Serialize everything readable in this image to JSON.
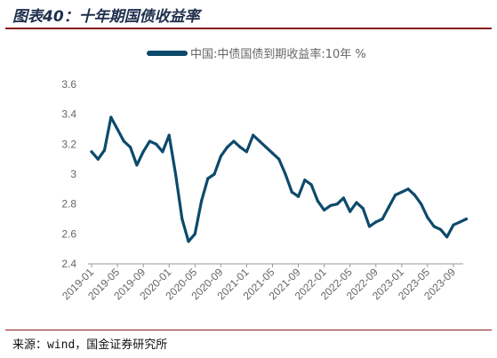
{
  "figure": {
    "title": "图表40：十年期国债收益率",
    "source": "来源：wind，国金证券研究所"
  },
  "chart_data": {
    "type": "line",
    "title": "",
    "xlabel": "",
    "ylabel": "",
    "ylim": [
      2.4,
      3.6
    ],
    "yticks": [
      "3.6",
      "3.4",
      "3.2",
      "3",
      "2.8",
      "2.6",
      "2.4"
    ],
    "xticks": [
      "2019-01",
      "2019-05",
      "2019-09",
      "2020-01",
      "2020-05",
      "2020-09",
      "2021-01",
      "2021-05",
      "2021-09",
      "2022-01",
      "2022-05",
      "2022-09",
      "2023-01",
      "2023-05",
      "2023-09"
    ],
    "grid": false,
    "legend": "top",
    "color": "#0d4a6b",
    "series": [
      {
        "name": "中国:中债国债到期收益率:10年 %",
        "x": [
          "2019-01",
          "2019-02",
          "2019-03",
          "2019-04",
          "2019-05",
          "2019-06",
          "2019-07",
          "2019-08",
          "2019-09",
          "2019-10",
          "2019-11",
          "2019-12",
          "2020-01",
          "2020-02",
          "2020-03",
          "2020-04",
          "2020-05",
          "2020-06",
          "2020-07",
          "2020-08",
          "2020-09",
          "2020-10",
          "2020-11",
          "2020-12",
          "2021-01",
          "2021-02",
          "2021-03",
          "2021-04",
          "2021-05",
          "2021-06",
          "2021-07",
          "2021-08",
          "2021-09",
          "2021-10",
          "2021-11",
          "2021-12",
          "2022-01",
          "2022-02",
          "2022-03",
          "2022-04",
          "2022-05",
          "2022-06",
          "2022-07",
          "2022-08",
          "2022-09",
          "2022-10",
          "2022-11",
          "2022-12",
          "2023-01",
          "2023-02",
          "2023-03",
          "2023-04",
          "2023-05",
          "2023-06",
          "2023-07",
          "2023-08",
          "2023-09",
          "2023-10",
          "2023-11"
        ],
        "values": [
          3.15,
          3.1,
          3.16,
          3.38,
          3.3,
          3.22,
          3.18,
          3.06,
          3.15,
          3.22,
          3.2,
          3.15,
          3.26,
          3.0,
          2.7,
          2.55,
          2.6,
          2.82,
          2.97,
          3.0,
          3.12,
          3.18,
          3.22,
          3.18,
          3.15,
          3.26,
          3.22,
          3.18,
          3.14,
          3.1,
          3.0,
          2.88,
          2.85,
          2.96,
          2.93,
          2.82,
          2.76,
          2.79,
          2.8,
          2.84,
          2.75,
          2.81,
          2.77,
          2.65,
          2.68,
          2.7,
          2.78,
          2.86,
          2.88,
          2.9,
          2.86,
          2.8,
          2.71,
          2.65,
          2.63,
          2.58,
          2.66,
          2.68,
          2.7
        ]
      }
    ]
  }
}
